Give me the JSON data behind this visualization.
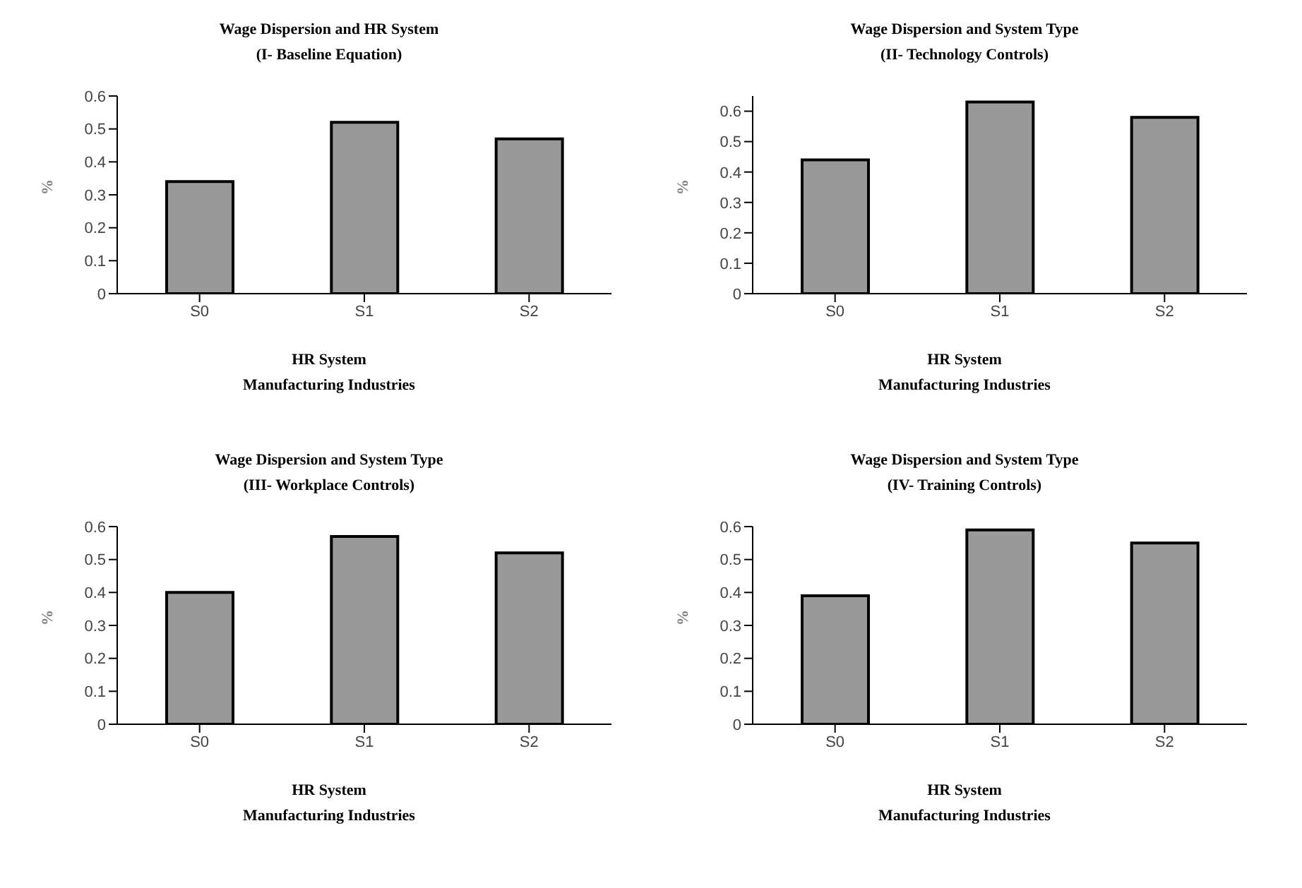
{
  "chart_data": [
    {
      "type": "bar",
      "title": "Wage Dispersion and HR System",
      "subtitle": "(I- Baseline Equation)",
      "categories": [
        "S0",
        "S1",
        "S2"
      ],
      "values": [
        0.34,
        0.52,
        0.47
      ],
      "color": "#999999",
      "ylim": [
        0,
        0.6
      ],
      "yticks": [
        0,
        0.1,
        0.2,
        0.3,
        0.4,
        0.5,
        0.6
      ],
      "xlabel": "HR System\nManufacturing Industries",
      "ylabel": "%",
      "grid": false,
      "legend": false
    },
    {
      "type": "bar",
      "title": "Wage Dispersion and System Type",
      "subtitle": "(II- Technology Controls)",
      "categories": [
        "S0",
        "S1",
        "S2"
      ],
      "values": [
        0.44,
        0.63,
        0.58
      ],
      "color": "#999999",
      "ylim": [
        0,
        0.65
      ],
      "yticks": [
        0,
        0.1,
        0.2,
        0.3,
        0.4,
        0.5,
        0.6
      ],
      "xlabel": "HR System\nManufacturing Industries",
      "ylabel": "%",
      "grid": false,
      "legend": false
    },
    {
      "type": "bar",
      "title": "Wage Dispersion and System Type",
      "subtitle": "(III- Workplace Controls)",
      "categories": [
        "S0",
        "S1",
        "S2"
      ],
      "values": [
        0.4,
        0.57,
        0.52
      ],
      "color": "#999999",
      "ylim": [
        0,
        0.6
      ],
      "yticks": [
        0,
        0.1,
        0.2,
        0.3,
        0.4,
        0.5,
        0.6
      ],
      "xlabel": "HR System\nManufacturing Industries",
      "ylabel": "%",
      "grid": false,
      "legend": false
    },
    {
      "type": "bar",
      "title": "Wage Dispersion and System Type",
      "subtitle": "(IV- Training Controls)",
      "categories": [
        "S0",
        "S1",
        "S2"
      ],
      "values": [
        0.39,
        0.59,
        0.55
      ],
      "color": "#999999",
      "ylim": [
        0,
        0.6
      ],
      "yticks": [
        0,
        0.1,
        0.2,
        0.3,
        0.4,
        0.5,
        0.6
      ],
      "xlabel": "HR System\nManufacturing Industries",
      "ylabel": "%",
      "grid": false,
      "legend": false
    }
  ]
}
